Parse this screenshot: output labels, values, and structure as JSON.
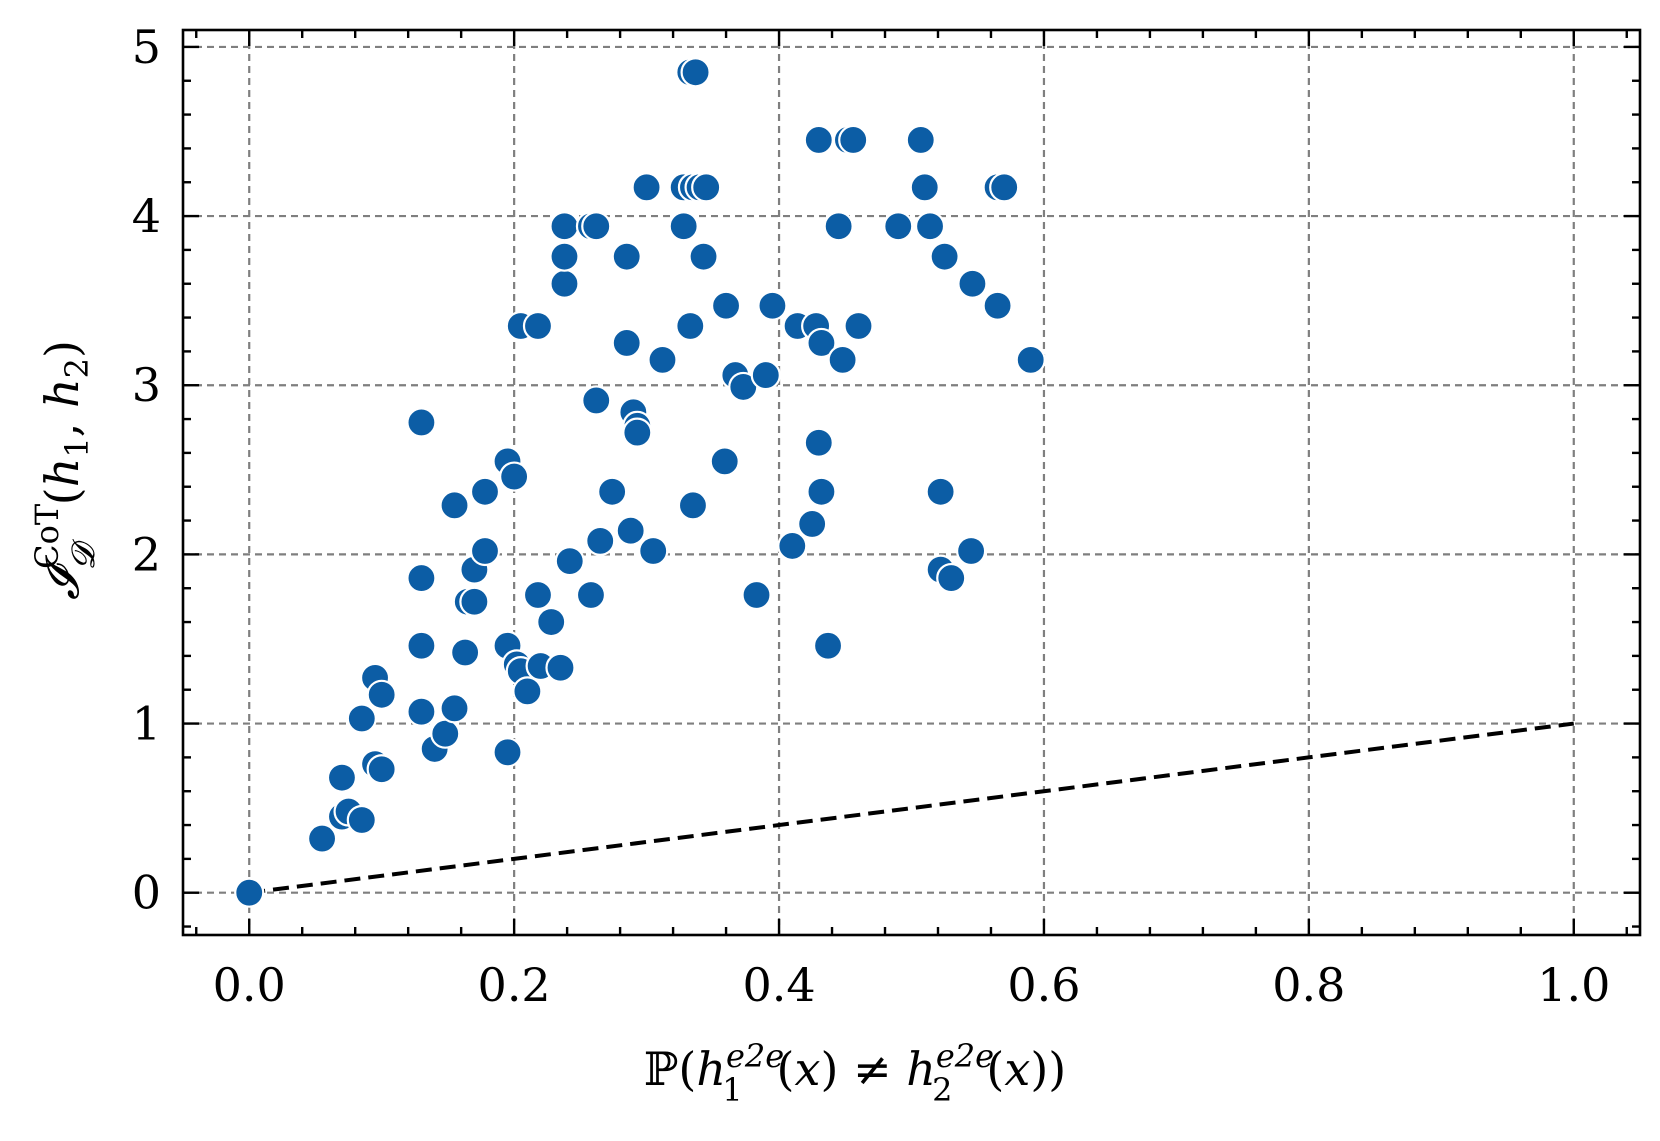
{
  "chart_data": {
    "type": "scatter",
    "title": "",
    "xlabel": "ℙ(h₁^{e2e}(x) ≠ h₂^{e2e}(x))",
    "ylabel": "𝓘_𝓓^{CoT}(h₁, h₂)",
    "xlim": [
      -0.05,
      1.05
    ],
    "ylim": [
      -0.25,
      5.1
    ],
    "x_ticks": [
      "0.0",
      "0.2",
      "0.4",
      "0.6",
      "0.8",
      "1.0"
    ],
    "y_ticks": [
      "0",
      "1",
      "2",
      "3",
      "4",
      "5"
    ],
    "grid": true,
    "marker_color": "#0c5da5",
    "reference_line": {
      "style": "dashed",
      "color": "#000000",
      "x": [
        0,
        1
      ],
      "y": [
        0,
        1
      ]
    },
    "series": [
      {
        "points": [
          [
            0.0,
            0.0
          ],
          [
            0.055,
            0.32
          ],
          [
            0.07,
            0.45
          ],
          [
            0.075,
            0.48
          ],
          [
            0.085,
            0.43
          ],
          [
            0.07,
            0.68
          ],
          [
            0.095,
            0.76
          ],
          [
            0.1,
            0.73
          ],
          [
            0.085,
            1.03
          ],
          [
            0.095,
            1.27
          ],
          [
            0.1,
            1.17
          ],
          [
            0.13,
            1.07
          ],
          [
            0.14,
            0.85
          ],
          [
            0.148,
            0.94
          ],
          [
            0.155,
            1.09
          ],
          [
            0.13,
            1.46
          ],
          [
            0.163,
            1.42
          ],
          [
            0.13,
            1.86
          ],
          [
            0.165,
            1.72
          ],
          [
            0.17,
            1.72
          ],
          [
            0.17,
            1.91
          ],
          [
            0.178,
            2.02
          ],
          [
            0.155,
            2.29
          ],
          [
            0.178,
            2.37
          ],
          [
            0.13,
            2.78
          ],
          [
            0.195,
            2.55
          ],
          [
            0.2,
            2.46
          ],
          [
            0.195,
            1.46
          ],
          [
            0.202,
            1.35
          ],
          [
            0.205,
            1.31
          ],
          [
            0.21,
            1.19
          ],
          [
            0.195,
            0.83
          ],
          [
            0.22,
            1.34
          ],
          [
            0.235,
            1.33
          ],
          [
            0.228,
            1.6
          ],
          [
            0.218,
            1.76
          ],
          [
            0.242,
            1.96
          ],
          [
            0.258,
            1.76
          ],
          [
            0.265,
            2.08
          ],
          [
            0.274,
            2.37
          ],
          [
            0.288,
            2.14
          ],
          [
            0.305,
            2.02
          ],
          [
            0.29,
            2.84
          ],
          [
            0.293,
            2.76
          ],
          [
            0.293,
            2.72
          ],
          [
            0.262,
            2.91
          ],
          [
            0.285,
            3.25
          ],
          [
            0.312,
            3.15
          ],
          [
            0.205,
            3.35
          ],
          [
            0.218,
            3.35
          ],
          [
            0.238,
            3.6
          ],
          [
            0.238,
            3.76
          ],
          [
            0.285,
            3.76
          ],
          [
            0.238,
            3.94
          ],
          [
            0.258,
            3.94
          ],
          [
            0.262,
            3.94
          ],
          [
            0.3,
            4.17
          ],
          [
            0.328,
            4.17
          ],
          [
            0.335,
            4.17
          ],
          [
            0.34,
            4.17
          ],
          [
            0.345,
            4.17
          ],
          [
            0.328,
            3.94
          ],
          [
            0.343,
            3.76
          ],
          [
            0.333,
            3.35
          ],
          [
            0.36,
            3.47
          ],
          [
            0.367,
            3.06
          ],
          [
            0.373,
            2.99
          ],
          [
            0.39,
            3.06
          ],
          [
            0.395,
            3.47
          ],
          [
            0.359,
            2.55
          ],
          [
            0.335,
            2.29
          ],
          [
            0.383,
            1.76
          ],
          [
            0.41,
            2.05
          ],
          [
            0.425,
            2.18
          ],
          [
            0.432,
            2.37
          ],
          [
            0.43,
            2.66
          ],
          [
            0.414,
            3.35
          ],
          [
            0.428,
            3.35
          ],
          [
            0.432,
            3.25
          ],
          [
            0.448,
            3.15
          ],
          [
            0.46,
            3.35
          ],
          [
            0.445,
            3.94
          ],
          [
            0.43,
            4.45
          ],
          [
            0.452,
            4.45
          ],
          [
            0.456,
            4.45
          ],
          [
            0.437,
            1.46
          ],
          [
            0.333,
            4.85
          ],
          [
            0.337,
            4.85
          ],
          [
            0.49,
            3.94
          ],
          [
            0.507,
            4.45
          ],
          [
            0.51,
            4.17
          ],
          [
            0.514,
            3.94
          ],
          [
            0.525,
            3.76
          ],
          [
            0.546,
            3.6
          ],
          [
            0.565,
            3.47
          ],
          [
            0.565,
            4.17
          ],
          [
            0.57,
            4.17
          ],
          [
            0.59,
            3.15
          ],
          [
            0.522,
            2.37
          ],
          [
            0.545,
            2.02
          ],
          [
            0.522,
            1.91
          ],
          [
            0.53,
            1.86
          ]
        ]
      }
    ]
  }
}
